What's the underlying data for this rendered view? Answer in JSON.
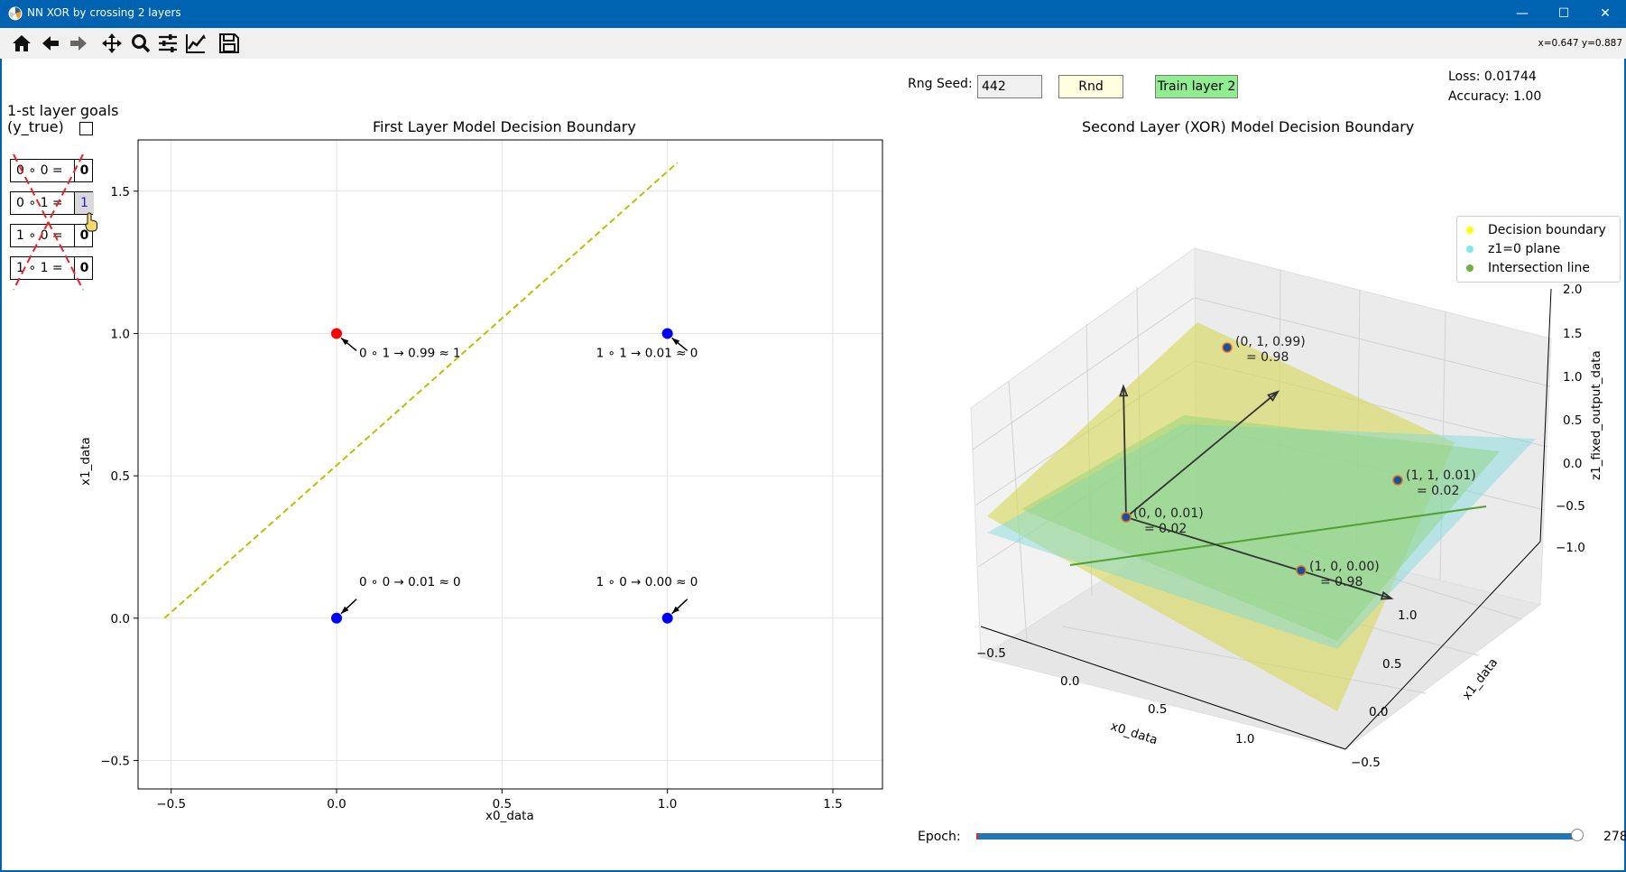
{
  "window": {
    "title": "NN XOR by crossing 2 layers",
    "minimize": "—",
    "maximize": "☐",
    "close": "✕"
  },
  "toolbar": {
    "buttons": [
      "home-icon",
      "back-icon",
      "forward-icon",
      "pan-icon",
      "zoom-icon",
      "configure-subplots-icon",
      "edit-axis-icon",
      "save-icon"
    ],
    "coords": "x=0.647 y=0.887"
  },
  "goals": {
    "title_line1": "1-st layer goals",
    "title_line2": " (y_true)",
    "rows": [
      {
        "label": "0 ∘ 0 =",
        "value": "0"
      },
      {
        "label": "0 ∘ 1 =",
        "value": "1"
      },
      {
        "label": "1 ∘ 0 =",
        "value": "0"
      },
      {
        "label": "1 ∘ 1 =",
        "value": "0"
      }
    ]
  },
  "controls": {
    "seed_label": "Rng Seed:",
    "seed_value": "442",
    "rnd_label": "Rnd",
    "train_label": "Train layer 2",
    "loss": "Loss: 0.01744",
    "accuracy": "Accuracy: 1.00",
    "epoch_label": "Epoch:",
    "epoch_value": "278",
    "epoch_progress": 1.0,
    "colors": {
      "rnd": "#ffffe0",
      "train": "#90ee90",
      "slider": "#1f77b4"
    }
  },
  "chart_data": [
    {
      "type": "scatter",
      "title": "First Layer Model Decision Boundary",
      "xlabel": "x0_data",
      "ylabel": "x1_data",
      "xlim": [
        -0.6,
        1.65
      ],
      "ylim": [
        -0.6,
        1.68
      ],
      "xticks": [
        -0.5,
        0.0,
        0.5,
        1.0,
        1.5
      ],
      "yticks": [
        -0.5,
        0.0,
        0.5,
        1.0,
        1.5
      ],
      "xtick_labels": [
        "−0.5",
        "0.0",
        "0.5",
        "1.0",
        "1.5"
      ],
      "ytick_labels": [
        "−0.5",
        "0.0",
        "0.5",
        "1.0",
        "1.5"
      ],
      "grid": true,
      "points": [
        {
          "x": 0,
          "y": 0,
          "color": "#0000ff",
          "label": "0 ∘ 0 → 0.01 ≈ 0"
        },
        {
          "x": 0,
          "y": 1,
          "color": "#ff0000",
          "label": "0 ∘ 1 → 0.99 ≈ 1"
        },
        {
          "x": 1,
          "y": 0,
          "color": "#0000ff",
          "label": "1 ∘ 0 → 0.00 ≈ 0"
        },
        {
          "x": 1,
          "y": 1,
          "color": "#0000ff",
          "label": "1 ∘ 1 → 0.01 ≈ 0"
        }
      ],
      "boundary_line": {
        "x": [
          -0.52,
          1.03
        ],
        "y": [
          0.0,
          1.6
        ],
        "color": "#bfbf00",
        "style": "dashed"
      }
    },
    {
      "type": "scatter",
      "title": "Second Layer (XOR) Model Decision Boundary",
      "xlabel": "x0_data",
      "ylabel": "x1_data",
      "zlabel": "z1_fixed_output_data",
      "xtick_labels": [
        "−0.5",
        "0.0",
        "0.5",
        "1.0"
      ],
      "ytick_labels": [
        "−0.5",
        "0.0",
        "0.5",
        "1.0"
      ],
      "ztick_labels": [
        "2.0",
        "1.5",
        "1.0",
        "0.5",
        "0.0",
        "−0.5",
        "−1.0"
      ],
      "legend": [
        "Decision boundary",
        "z1=0 plane",
        "Intersection line"
      ],
      "legend_colors": [
        "#ffff00",
        "#80e8f0",
        "#6db33f"
      ],
      "legend_position": "top-right",
      "points": [
        {
          "x0": 0,
          "x1": 0,
          "z": 0.01,
          "label": "(0, 0, 0.01)",
          "sub": "= 0.02"
        },
        {
          "x0": 0,
          "x1": 1,
          "z": 0.99,
          "label": "(0, 1, 0.99)",
          "sub": "= 0.98"
        },
        {
          "x0": 1,
          "x1": 0,
          "z": 0.0,
          "label": "(1, 0, 0.00)",
          "sub": "= 0.98"
        },
        {
          "x0": 1,
          "x1": 1,
          "z": 0.01,
          "label": "(1, 1, 0.01)",
          "sub": "= 0.02"
        }
      ]
    }
  ]
}
